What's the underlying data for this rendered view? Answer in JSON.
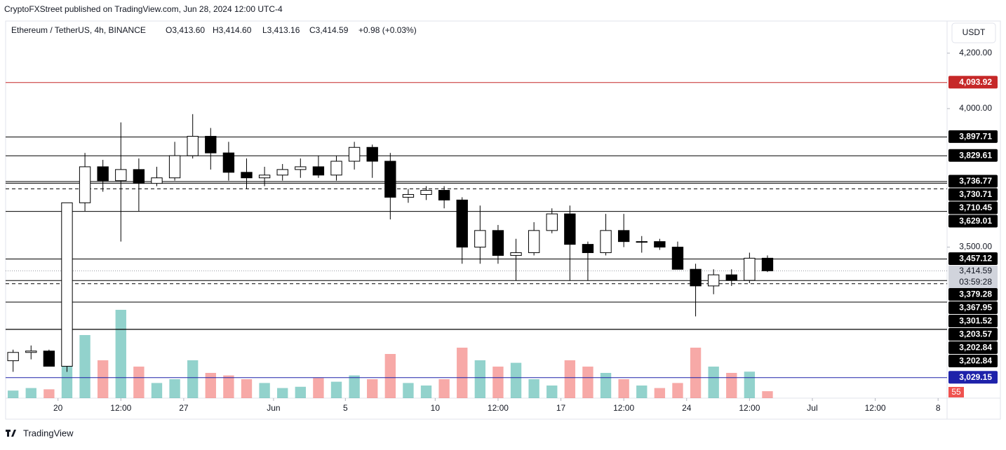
{
  "header": {
    "published": "CryptoFXStreet published on TradingView.com, Jun 28, 2024 12:00 UTC-4",
    "symbol": "Ethereum / TetherUS, 4h, BINANCE",
    "open": "O3,413.60",
    "high": "H3,414.60",
    "low": "L3,413.16",
    "close": "C3,414.59",
    "change": "+0.98 (+0.03%)",
    "currency": "USDT"
  },
  "footer": {
    "brand": "TradingView"
  },
  "chart_data": {
    "type": "candlestick",
    "x": [
      "2024-05-17",
      "2024-05-18",
      "2024-05-19",
      "2024-05-20",
      "2024-05-21",
      "2024-05-22",
      "2024-05-23",
      "2024-05-24",
      "2024-05-25",
      "2024-05-26",
      "2024-05-27",
      "2024-05-28",
      "2024-05-29",
      "2024-05-30",
      "2024-05-31",
      "2024-06-01",
      "2024-06-02",
      "2024-06-03",
      "2024-06-04",
      "2024-06-05",
      "2024-06-06",
      "2024-06-07",
      "2024-06-08",
      "2024-06-09",
      "2024-06-10",
      "2024-06-11",
      "2024-06-12",
      "2024-06-13",
      "2024-06-14",
      "2024-06-15",
      "2024-06-16",
      "2024-06-17",
      "2024-06-18",
      "2024-06-19",
      "2024-06-20",
      "2024-06-21",
      "2024-06-22",
      "2024-06-23",
      "2024-06-24",
      "2024-06-25",
      "2024-06-26",
      "2024-06-27",
      "2024-06-28"
    ],
    "open": [
      3090,
      3120,
      3125,
      3070,
      3660,
      3790,
      3740,
      3780,
      3730,
      3750,
      3830,
      3900,
      3840,
      3770,
      3750,
      3760,
      3780,
      3790,
      3760,
      3810,
      3860,
      3810,
      3680,
      3690,
      3705,
      3670,
      3500,
      3560,
      3470,
      3480,
      3560,
      3620,
      3510,
      3480,
      3560,
      3520,
      3520,
      3500,
      3420,
      3360,
      3400,
      3380,
      3460
    ],
    "high": [
      3130,
      3145,
      3130,
      3660,
      3840,
      3815,
      3950,
      3820,
      3790,
      3880,
      3980,
      3930,
      3880,
      3820,
      3790,
      3800,
      3820,
      3830,
      3830,
      3880,
      3870,
      3840,
      3710,
      3720,
      3720,
      3680,
      3650,
      3580,
      3530,
      3590,
      3640,
      3650,
      3520,
      3620,
      3620,
      3540,
      3530,
      3520,
      3440,
      3420,
      3420,
      3480,
      3470
    ],
    "low": [
      3050,
      3095,
      3070,
      3050,
      3630,
      3700,
      3520,
      3630,
      3720,
      3740,
      3820,
      3780,
      3740,
      3710,
      3720,
      3740,
      3750,
      3750,
      3740,
      3780,
      3750,
      3600,
      3660,
      3670,
      3640,
      3440,
      3440,
      3440,
      3380,
      3470,
      3550,
      3380,
      3380,
      3470,
      3500,
      3480,
      3490,
      3420,
      3250,
      3330,
      3360,
      3370,
      3410
    ],
    "close": [
      3120,
      3125,
      3070,
      3660,
      3790,
      3740,
      3780,
      3730,
      3750,
      3830,
      3900,
      3840,
      3770,
      3750,
      3760,
      3780,
      3790,
      3760,
      3810,
      3860,
      3810,
      3680,
      3690,
      3705,
      3670,
      3500,
      3560,
      3470,
      3480,
      3560,
      3620,
      3510,
      3480,
      3560,
      3520,
      3520,
      3500,
      3420,
      3360,
      3400,
      3380,
      3460,
      3414.59
    ],
    "volume": [
      60,
      80,
      70,
      900,
      500,
      300,
      700,
      250,
      120,
      150,
      300,
      200,
      180,
      150,
      120,
      80,
      90,
      160,
      130,
      180,
      150,
      350,
      120,
      100,
      150,
      400,
      300,
      250,
      280,
      150,
      100,
      300,
      250,
      200,
      150,
      100,
      80,
      120,
      400,
      250,
      200,
      210,
      55
    ],
    "volume_label": "55",
    "volume_ylim": [
      0,
      1000
    ],
    "up_color": "#ffffff",
    "down_color": "#000000",
    "up_volume_color": "#26a69a",
    "down_volume_color": "#ef5350",
    "xlim": [
      "2024-05-17T02:00",
      "2024-07-08T12:00"
    ],
    "xticks": [
      {
        "value": "2024-05-20T00:00",
        "label": "20"
      },
      {
        "value": "2024-05-23T12:00",
        "label": "12:00"
      },
      {
        "value": "2024-05-27T00:00",
        "label": "27"
      },
      {
        "value": "2024-06-01T00:00",
        "label": "Jun"
      },
      {
        "value": "2024-06-05T00:00",
        "label": "5"
      },
      {
        "value": "2024-06-10T00:00",
        "label": "10"
      },
      {
        "value": "2024-06-13T12:00",
        "label": "12:00"
      },
      {
        "value": "2024-06-17T00:00",
        "label": "17"
      },
      {
        "value": "2024-06-20T12:00",
        "label": "12:00"
      },
      {
        "value": "2024-06-24T00:00",
        "label": "24"
      },
      {
        "value": "2024-06-27T12:00",
        "label": "12:00"
      },
      {
        "value": "2024-07-01T00:00",
        "label": "Jul"
      },
      {
        "value": "2024-07-04T12:00",
        "label": "12:00"
      },
      {
        "value": "2024-07-08T00:00",
        "label": "8"
      }
    ],
    "ylim": [
      2955,
      4316
    ],
    "yticks": [
      {
        "value": 4200,
        "label": "4,200.00"
      },
      {
        "value": 4000,
        "label": "4,000.00"
      },
      {
        "value": 3500,
        "label": "3,500.00"
      }
    ],
    "levels": [
      {
        "value": 4093.92,
        "label": "4,093.92",
        "color": "#c62828",
        "dashed": false
      },
      {
        "value": 3897.71,
        "label": "3,897.71",
        "color": "#000000",
        "dashed": false
      },
      {
        "value": 3829.61,
        "label": "3,829.61",
        "color": "#000000",
        "dashed": false
      },
      {
        "value": 3736.77,
        "label": "3,736.77",
        "color": "#000000",
        "dashed": false
      },
      {
        "value": 3730.71,
        "label": "3,730.71",
        "color": "#000000",
        "dashed": false
      },
      {
        "value": 3710.45,
        "label": "3,710.45",
        "color": "#000000",
        "dashed": true
      },
      {
        "value": 3629.01,
        "label": "3,629.01",
        "color": "#000000",
        "dashed": false
      },
      {
        "value": 3457.12,
        "label": "3,457.12",
        "color": "#000000",
        "dashed": false
      },
      {
        "value": 3379.28,
        "label": "3,379.28",
        "color": "#000000",
        "dashed": false
      },
      {
        "value": 3367.95,
        "label": "3,367.95",
        "color": "#000000",
        "dashed": true
      },
      {
        "value": 3301.52,
        "label": "3,301.52",
        "color": "#000000",
        "dashed": false
      },
      {
        "value": 3203.57,
        "label": "3,203.57",
        "color": "#000000",
        "dashed": false
      },
      {
        "value": 3202.84,
        "label": "3,202.84",
        "color": "#000000",
        "dashed": false
      },
      {
        "value": 3202.84,
        "label": "3,202.84",
        "color": "#000000",
        "dashed": false
      },
      {
        "value": 3029.15,
        "label": "3,029.15",
        "color": "#1e22aa",
        "dashed": false
      }
    ],
    "last_price": {
      "value": 3414.59,
      "label": "3,414.59",
      "countdown": "03:59:28",
      "color": "#d1d4dc"
    }
  }
}
